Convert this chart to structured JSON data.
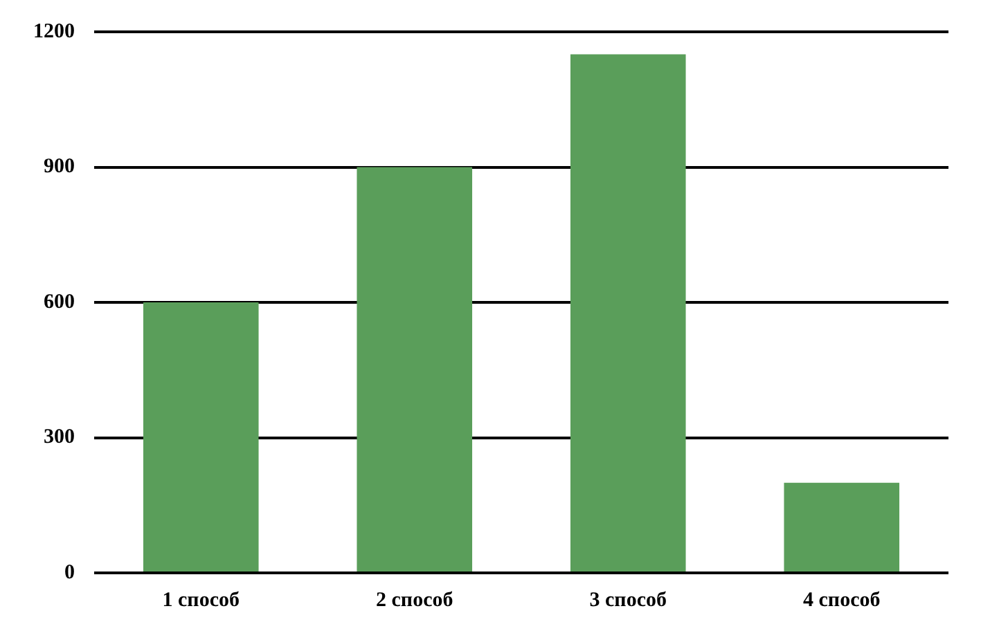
{
  "chart_data": {
    "type": "bar",
    "categories": [
      "1 способ",
      "2 способ",
      "3 способ",
      "4 способ"
    ],
    "values": [
      600,
      900,
      1150,
      200
    ],
    "color": "#5a9e5a",
    "ylim": [
      0,
      1200
    ],
    "yticks": [
      0,
      300,
      600,
      900,
      1200
    ],
    "grid": "y"
  }
}
